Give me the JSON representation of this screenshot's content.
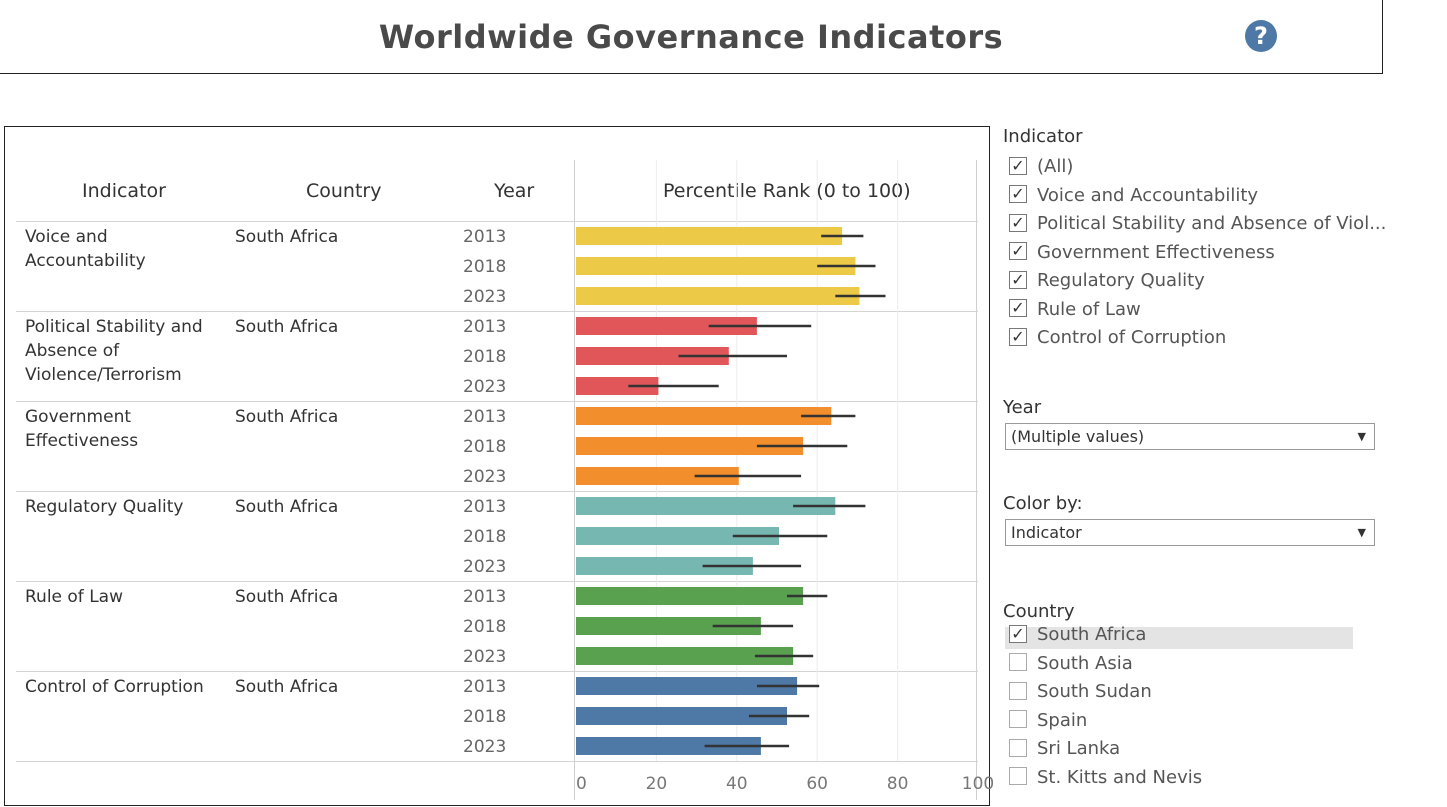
{
  "header": {
    "title": "Worldwide Governance Indicators",
    "help_icon": "?"
  },
  "table": {
    "col_indicator": "Indicator",
    "col_country": "Country",
    "col_year": "Year",
    "col_measure": "Percentile Rank (0 to 100)"
  },
  "chart_data": {
    "type": "bar",
    "title": "Percentile Rank (0 to 100)",
    "xlabel": "Percentile Rank (0 to 100)",
    "xlim": [
      0,
      100
    ],
    "x_ticks": [
      "0",
      "20",
      "40",
      "60",
      "80",
      "100"
    ],
    "country": "South Africa",
    "years": [
      "2013",
      "2018",
      "2023"
    ],
    "groups": [
      {
        "indicator": "Voice and Accountability",
        "color": "#edc948",
        "values": [
          66.2,
          69.5,
          70.5
        ],
        "err_low": [
          61,
          60,
          64.5
        ],
        "err_high": [
          71.5,
          74.5,
          77
        ]
      },
      {
        "indicator": "Political Stability and Absence of Violence/Terrorism",
        "color": "#e15759",
        "values": [
          45,
          38,
          20.5
        ],
        "err_low": [
          33,
          25.5,
          13
        ],
        "err_high": [
          58.5,
          52.5,
          35.5
        ]
      },
      {
        "indicator": "Government Effectiveness",
        "color": "#f28e2b",
        "values": [
          63.5,
          56.5,
          40.5
        ],
        "err_low": [
          56,
          45,
          29.5
        ],
        "err_high": [
          69.5,
          67.5,
          56
        ]
      },
      {
        "indicator": "Regulatory Quality",
        "color": "#76b7b2",
        "values": [
          64.5,
          50.5,
          44
        ],
        "err_low": [
          54,
          39,
          31.5
        ],
        "err_high": [
          72,
          62.5,
          56
        ]
      },
      {
        "indicator": "Rule of Law",
        "color": "#59a14f",
        "values": [
          56.5,
          46,
          54
        ],
        "err_low": [
          52.5,
          34,
          44.5
        ],
        "err_high": [
          62.5,
          54,
          59
        ]
      },
      {
        "indicator": "Control of Corruption",
        "color": "#4e79a7",
        "values": [
          55,
          52.5,
          46
        ],
        "err_low": [
          45,
          43,
          32
        ],
        "err_high": [
          60.5,
          58,
          53
        ]
      }
    ],
    "indicator_labels": [
      [
        "Voice and Accountability"
      ],
      [
        "Political Stability and",
        "Absence of",
        "Violence/Terrorism"
      ],
      [
        "Government",
        "Effectiveness"
      ],
      [
        "Regulatory Quality"
      ],
      [
        "Rule of Law"
      ],
      [
        "Control of Corruption"
      ]
    ]
  },
  "filters": {
    "indicator_title": "Indicator",
    "indicator_items": [
      {
        "label": "(All)",
        "checked": true
      },
      {
        "label": "Voice and Accountability",
        "checked": true
      },
      {
        "label": "Political Stability and Absence of Viol...",
        "checked": true
      },
      {
        "label": "Government Effectiveness",
        "checked": true
      },
      {
        "label": "Regulatory Quality",
        "checked": true
      },
      {
        "label": "Rule of Law",
        "checked": true
      },
      {
        "label": "Control of Corruption",
        "checked": true
      }
    ],
    "year_title": "Year",
    "year_value": "(Multiple values)",
    "color_title": "Color by:",
    "color_value": "Indicator",
    "country_title": "Country",
    "country_items": [
      {
        "label": "South Africa",
        "checked": true
      },
      {
        "label": "South Asia",
        "checked": false
      },
      {
        "label": "South Sudan",
        "checked": false
      },
      {
        "label": "Spain",
        "checked": false
      },
      {
        "label": "Sri Lanka",
        "checked": false
      },
      {
        "label": "St. Kitts and Nevis",
        "checked": false
      }
    ]
  }
}
